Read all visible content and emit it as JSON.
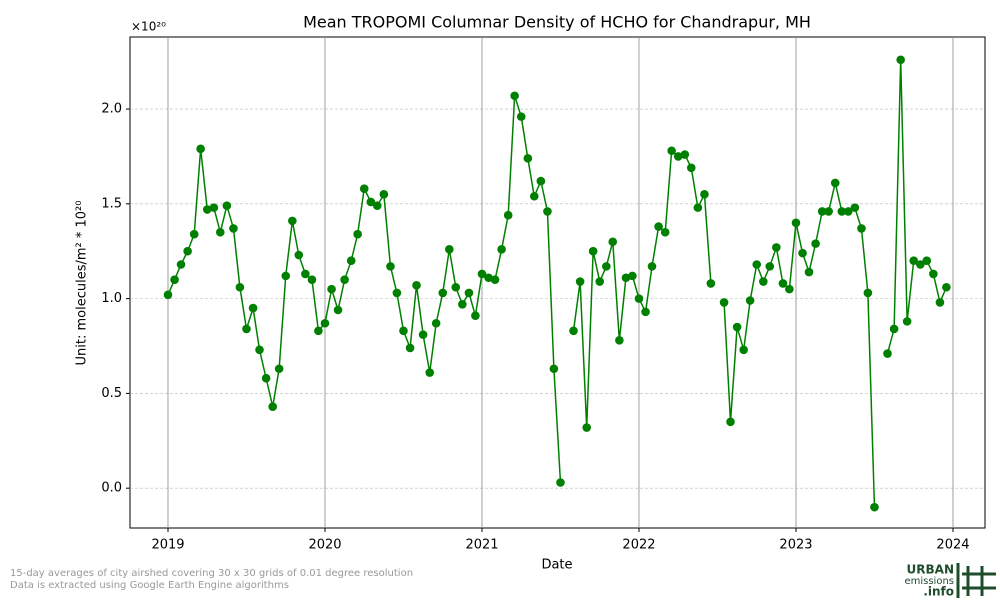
{
  "chart_data": {
    "type": "line",
    "title": "Mean TROPOMI Columnar Density of HCHO for Chandrapur, MH",
    "x_label": "Date",
    "y_label": "Unit: molecules/m² * 10²⁰",
    "y_offset_label": "×10²⁰",
    "footnotes": [
      "15-day averages of city airshed covering 30 x 30 grids of 0.01 degree resolution",
      "Data is extracted using Google Earth Engine algorithms"
    ],
    "logo": [
      "URBAN",
      "emissions",
      ".info"
    ],
    "grid": true,
    "xlim": [
      2018.758,
      2024.204
    ],
    "xticks": [
      2019,
      2020,
      2021,
      2022,
      2023,
      2024
    ],
    "ylim": [
      -0.21,
      2.38
    ],
    "yticks": [
      {
        "value": 0,
        "label": "0.0"
      },
      0.5,
      {
        "value": 1,
        "label": "1.0"
      },
      1.5,
      {
        "value": 2,
        "label": "2.0"
      }
    ],
    "x": [
      2019,
      2019.042,
      2019.083,
      2019.125,
      2019.167,
      2019.208,
      2019.25,
      2019.292,
      2019.333,
      2019.375,
      2019.417,
      2019.458,
      2019.5,
      2019.542,
      2019.583,
      2019.625,
      2019.667,
      2019.708,
      2019.75,
      2019.792,
      2019.833,
      2019.875,
      2019.917,
      2019.958,
      2020,
      2020.042,
      2020.083,
      2020.125,
      2020.167,
      2020.208,
      2020.25,
      2020.292,
      2020.333,
      2020.375,
      2020.417,
      2020.458,
      2020.5,
      2020.542,
      2020.583,
      2020.625,
      2020.667,
      2020.708,
      2020.75,
      2020.792,
      2020.833,
      2020.875,
      2020.917,
      2020.958,
      2021,
      2021.042,
      2021.083,
      2021.125,
      2021.167,
      2021.208,
      2021.25,
      2021.292,
      2021.333,
      2021.375,
      2021.417,
      2021.458,
      2021.5,
      2021.542,
      2021.583,
      2021.625,
      2021.667,
      2021.708,
      2021.75,
      2021.792,
      2021.833,
      2021.875,
      2021.917,
      2021.958,
      2022,
      2022.042,
      2022.083,
      2022.125,
      2022.167,
      2022.208,
      2022.25,
      2022.292,
      2022.333,
      2022.375,
      2022.417,
      2022.458,
      2022.5,
      2022.542,
      2022.583,
      2022.625,
      2022.667,
      2022.708,
      2022.75,
      2022.792,
      2022.833,
      2022.875,
      2022.917,
      2022.958,
      2023,
      2023.042,
      2023.083,
      2023.125,
      2023.167,
      2023.208,
      2023.25,
      2023.292,
      2023.333,
      2023.375,
      2023.417,
      2023.458,
      2023.5,
      2023.542,
      2023.583,
      2023.625,
      2023.667,
      2023.708,
      2023.75,
      2023.792,
      2023.833,
      2023.875,
      2023.917,
      2023.958
    ],
    "series": [
      {
        "name": "HCHO",
        "color": "#008000",
        "values": [
          1.02,
          1.1,
          1.18,
          1.25,
          1.34,
          1.79,
          1.47,
          1.48,
          1.35,
          1.49,
          1.37,
          1.06,
          0.84,
          0.95,
          0.73,
          0.58,
          0.43,
          0.63,
          1.12,
          1.41,
          1.23,
          1.13,
          1.1,
          0.83,
          0.87,
          1.05,
          0.94,
          1.1,
          1.2,
          1.34,
          1.58,
          1.51,
          1.49,
          1.55,
          1.17,
          1.03,
          0.83,
          0.74,
          1.07,
          0.81,
          0.61,
          0.87,
          1.03,
          1.26,
          1.06,
          0.97,
          1.03,
          0.91,
          1.13,
          1.11,
          1.1,
          1.26,
          1.44,
          2.07,
          1.96,
          1.74,
          1.54,
          1.62,
          1.46,
          0.63,
          0.03,
          null,
          0.83,
          1.09,
          0.32,
          1.25,
          1.09,
          1.17,
          1.3,
          0.78,
          1.11,
          1.12,
          1.0,
          0.93,
          1.17,
          1.38,
          1.35,
          1.78,
          1.75,
          1.76,
          1.69,
          1.48,
          1.55,
          1.08,
          null,
          0.98,
          0.35,
          0.85,
          0.73,
          0.99,
          1.18,
          1.09,
          1.17,
          1.27,
          1.08,
          1.05,
          1.4,
          1.24,
          1.14,
          1.29,
          1.46,
          1.46,
          1.61,
          1.46,
          1.46,
          1.48,
          1.37,
          1.03,
          -0.1,
          null,
          0.71,
          0.84,
          2.26,
          0.88,
          1.2,
          1.18,
          1.2,
          1.13,
          0.98,
          1.06
        ]
      }
    ]
  }
}
